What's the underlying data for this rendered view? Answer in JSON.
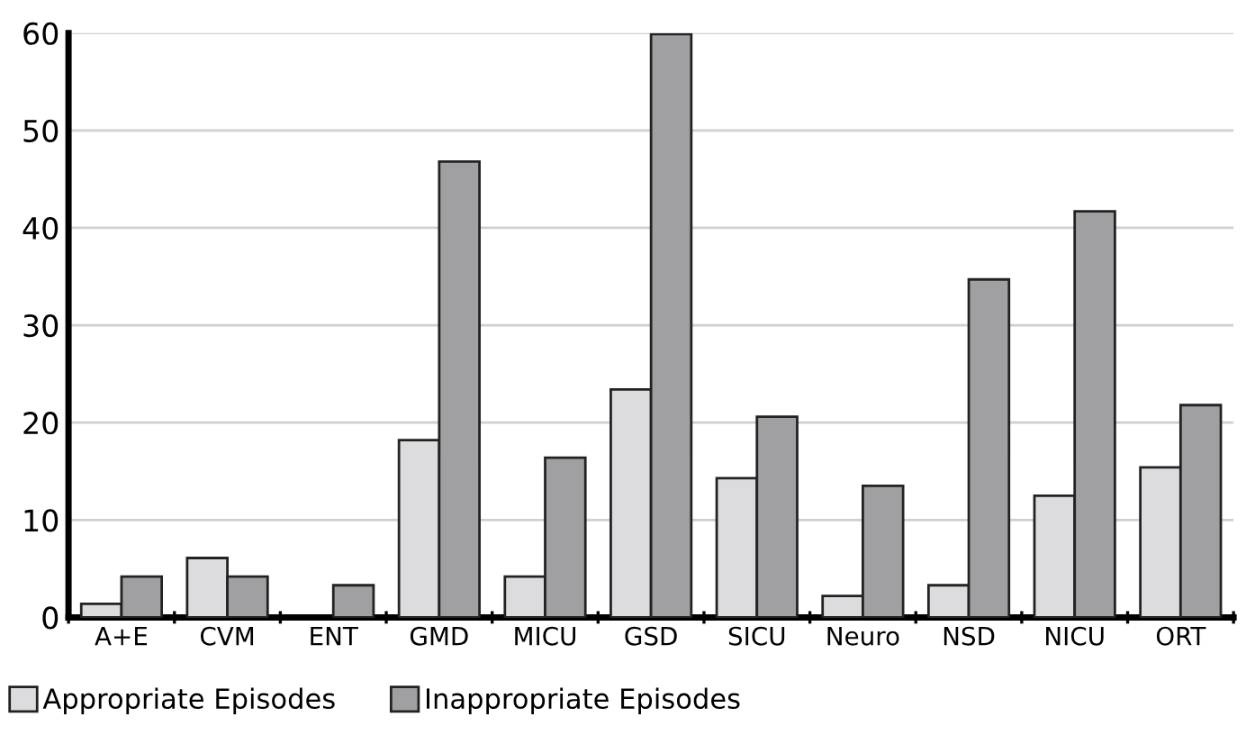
{
  "chart_data": {
    "type": "bar",
    "categories": [
      "A+E",
      "CVM",
      "ENT",
      "GMD",
      "MICU",
      "GSD",
      "SICU",
      "Neuro",
      "NSD",
      "NICU",
      "ORT"
    ],
    "series": [
      {
        "name": "Appropriate Episodes",
        "color": "#dcdcde",
        "values": [
          1.4,
          6.1,
          null,
          18.2,
          4.2,
          23.4,
          14.3,
          2.2,
          3.3,
          12.5,
          15.4
        ]
      },
      {
        "name": "Inappropriate Episodes",
        "color": "#a0a0a3",
        "values": [
          4.2,
          4.2,
          3.3,
          46.8,
          16.4,
          59.9,
          20.6,
          13.5,
          34.7,
          41.7,
          21.8
        ]
      }
    ],
    "ylim": [
      0,
      60
    ],
    "yticks": [
      0,
      10,
      20,
      30,
      40,
      50,
      60
    ],
    "grid": "y",
    "legend": "bottom left"
  }
}
